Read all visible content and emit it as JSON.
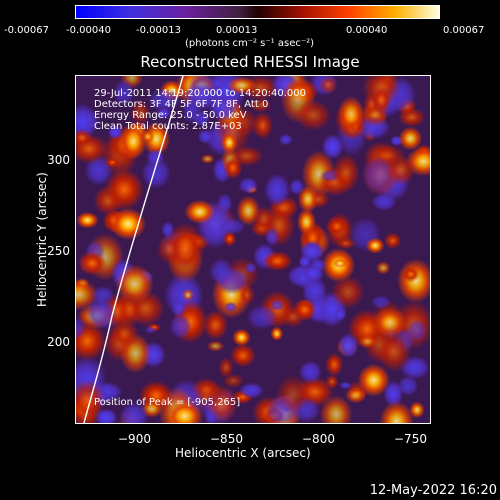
{
  "colorbar": {
    "ticks": [
      "-0.00067",
      "-0.00040",
      "-0.00013",
      "0.00013",
      "0.00040",
      "0.00067"
    ],
    "units": "(photons cm⁻² s⁻¹ asec⁻²)"
  },
  "title": "Reconstructed RHESSI Image",
  "annotations": {
    "line1": "29-Jul-2011 14:19:20.000 to 14:20:40.000",
    "line2": "Detectors: 3F 4F 5F 6F 7F 8F, Att 0",
    "line3": "Energy Range: 25.0 - 50.0 keV",
    "line4": "Clean    Total counts: 2.87E+03",
    "peak": "Position of Peak = [-905,265]"
  },
  "axes": {
    "xlabel": "Heliocentric X (arcsec)",
    "ylabel": "Heliocentric Y (arcsec)",
    "xticks": [
      "−900",
      "−850",
      "−800",
      "−750"
    ],
    "yticks": [
      "300",
      "250",
      "200"
    ]
  },
  "footer": "12-May-2022 16:20"
}
